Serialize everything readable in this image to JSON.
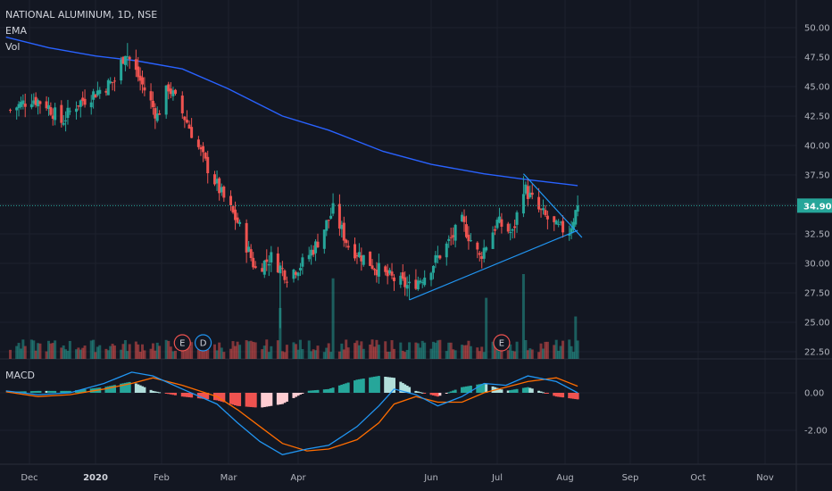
{
  "header": {
    "title": "NATIONAL ALUMINUM, 1D, NSE",
    "ema_label": "EMA",
    "vol_label": "Vol",
    "macd_label": "MACD"
  },
  "colors": {
    "background": "#131722",
    "up": "#26a69a",
    "down": "#ef5350",
    "ema": "#2962ff",
    "trendline": "#2196f3",
    "macd_line": "#2196f3",
    "signal_line": "#ff6d00",
    "last_price_badge": "#26a69a"
  },
  "chart_data": [
    {
      "type": "candlestick",
      "symbol": "NATIONAL ALUMINUM",
      "interval": "1D",
      "exchange": "NSE",
      "x_ticks": [
        "Dec",
        "2020",
        "Feb",
        "Mar",
        "Apr",
        "Jun",
        "Jul",
        "Aug",
        "Sep",
        "Oct",
        "Nov"
      ],
      "y_ticks": [
        "50.00",
        "47.50",
        "45.00",
        "42.50",
        "40.00",
        "37.50",
        "32.50",
        "30.00",
        "27.50",
        "25.00",
        "22.50"
      ],
      "ylim": [
        22.5,
        52
      ],
      "last_price": "34.90",
      "approx_close_path": [
        [
          "2019-11-22",
          43.0
        ],
        [
          "2019-12-02",
          44.0
        ],
        [
          "2019-12-09",
          43.5
        ],
        [
          "2019-12-16",
          42.0
        ],
        [
          "2019-12-23",
          43.5
        ],
        [
          "2020-01-01",
          44.5
        ],
        [
          "2020-01-10",
          45.5
        ],
        [
          "2020-01-15",
          48.0
        ],
        [
          "2020-01-22",
          45.5
        ],
        [
          "2020-01-30",
          42.5
        ],
        [
          "2020-02-04",
          45.0
        ],
        [
          "2020-02-12",
          42.0
        ],
        [
          "2020-02-20",
          38.5
        ],
        [
          "2020-02-28",
          35.5
        ],
        [
          "2020-03-05",
          33.5
        ],
        [
          "2020-03-13",
          29.5
        ],
        [
          "2020-03-20",
          30.5
        ],
        [
          "2020-03-27",
          29.0
        ],
        [
          "2020-04-03",
          30.0
        ],
        [
          "2020-04-09",
          31.5
        ],
        [
          "2020-04-17",
          34.5
        ],
        [
          "2020-04-24",
          31.5
        ],
        [
          "2020-05-01",
          30.5
        ],
        [
          "2020-05-11",
          29.0
        ],
        [
          "2020-05-22",
          28.0
        ],
        [
          "2020-05-29",
          29.0
        ],
        [
          "2020-06-08",
          31.5
        ],
        [
          "2020-06-15",
          33.5
        ],
        [
          "2020-06-23",
          30.5
        ],
        [
          "2020-07-01",
          33.5
        ],
        [
          "2020-07-08",
          32.5
        ],
        [
          "2020-07-13",
          36.5
        ],
        [
          "2020-07-20",
          34.5
        ],
        [
          "2020-07-28",
          33.0
        ],
        [
          "2020-08-03",
          32.8
        ],
        [
          "2020-08-07",
          34.9
        ]
      ],
      "ema_path": [
        [
          "2019-11-20",
          49.2
        ],
        [
          "2019-12-10",
          48.3
        ],
        [
          "2020-01-01",
          47.6
        ],
        [
          "2020-01-20",
          47.2
        ],
        [
          "2020-02-10",
          46.5
        ],
        [
          "2020-03-01",
          44.8
        ],
        [
          "2020-03-25",
          42.5
        ],
        [
          "2020-04-15",
          41.3
        ],
        [
          "2020-05-10",
          39.5
        ],
        [
          "2020-06-01",
          38.4
        ],
        [
          "2020-06-25",
          37.6
        ],
        [
          "2020-07-15",
          37.1
        ],
        [
          "2020-08-07",
          36.6
        ]
      ],
      "trendlines": [
        {
          "name": "support",
          "points": [
            [
              "2020-05-22",
              26.9
            ],
            [
              "2020-08-07",
              32.8
            ]
          ]
        },
        {
          "name": "resistance",
          "points": [
            [
              "2020-07-13",
              37.6
            ],
            [
              "2020-08-09",
              32.2
            ]
          ]
        }
      ],
      "event_markers": [
        {
          "label": "E",
          "date": "2020-02-10",
          "kind": "earnings"
        },
        {
          "label": "D",
          "date": "2020-02-19",
          "kind": "dividend"
        },
        {
          "label": "E",
          "date": "2020-07-03",
          "kind": "earnings"
        }
      ],
      "volume_spikes": [
        {
          "date": "2020-03-24",
          "relative": 0.6
        },
        {
          "date": "2020-04-17",
          "relative": 0.95
        },
        {
          "date": "2020-06-26",
          "relative": 0.72
        },
        {
          "date": "2020-07-13",
          "relative": 1.0
        },
        {
          "date": "2020-08-06",
          "relative": 0.5
        }
      ]
    },
    {
      "type": "line",
      "name": "MACD",
      "y_ticks": [
        "0.00",
        "-2.00"
      ],
      "ylim": [
        -3.9,
        1.6
      ],
      "series": [
        {
          "name": "MACD",
          "points": [
            [
              "2019-11-20",
              0.1
            ],
            [
              "2019-12-05",
              -0.1
            ],
            [
              "2019-12-20",
              0.0
            ],
            [
              "2020-01-05",
              0.5
            ],
            [
              "2020-01-18",
              1.1
            ],
            [
              "2020-01-28",
              0.9
            ],
            [
              "2020-02-10",
              0.2
            ],
            [
              "2020-02-25",
              -0.6
            ],
            [
              "2020-03-05",
              -1.6
            ],
            [
              "2020-03-15",
              -2.6
            ],
            [
              "2020-03-25",
              -3.3
            ],
            [
              "2020-04-05",
              -3.0
            ],
            [
              "2020-04-15",
              -2.8
            ],
            [
              "2020-04-28",
              -1.8
            ],
            [
              "2020-05-08",
              -0.7
            ],
            [
              "2020-05-15",
              0.2
            ],
            [
              "2020-05-25",
              -0.1
            ],
            [
              "2020-06-04",
              -0.7
            ],
            [
              "2020-06-15",
              -0.2
            ],
            [
              "2020-06-25",
              0.5
            ],
            [
              "2020-07-05",
              0.4
            ],
            [
              "2020-07-15",
              0.9
            ],
            [
              "2020-07-28",
              0.6
            ],
            [
              "2020-08-07",
              0.0
            ]
          ]
        },
        {
          "name": "Signal",
          "points": [
            [
              "2019-11-20",
              0.05
            ],
            [
              "2019-12-05",
              -0.2
            ],
            [
              "2019-12-20",
              -0.1
            ],
            [
              "2020-01-05",
              0.2
            ],
            [
              "2020-01-18",
              0.5
            ],
            [
              "2020-01-28",
              0.8
            ],
            [
              "2020-02-10",
              0.4
            ],
            [
              "2020-02-25",
              -0.2
            ],
            [
              "2020-03-05",
              -0.9
            ],
            [
              "2020-03-15",
              -1.8
            ],
            [
              "2020-03-25",
              -2.7
            ],
            [
              "2020-04-05",
              -3.1
            ],
            [
              "2020-04-15",
              -3.0
            ],
            [
              "2020-04-28",
              -2.5
            ],
            [
              "2020-05-08",
              -1.6
            ],
            [
              "2020-05-15",
              -0.6
            ],
            [
              "2020-05-25",
              -0.2
            ],
            [
              "2020-06-04",
              -0.5
            ],
            [
              "2020-06-15",
              -0.5
            ],
            [
              "2020-06-25",
              0.0
            ],
            [
              "2020-07-05",
              0.3
            ],
            [
              "2020-07-15",
              0.6
            ],
            [
              "2020-07-28",
              0.8
            ],
            [
              "2020-08-07",
              0.35
            ]
          ]
        }
      ]
    }
  ]
}
